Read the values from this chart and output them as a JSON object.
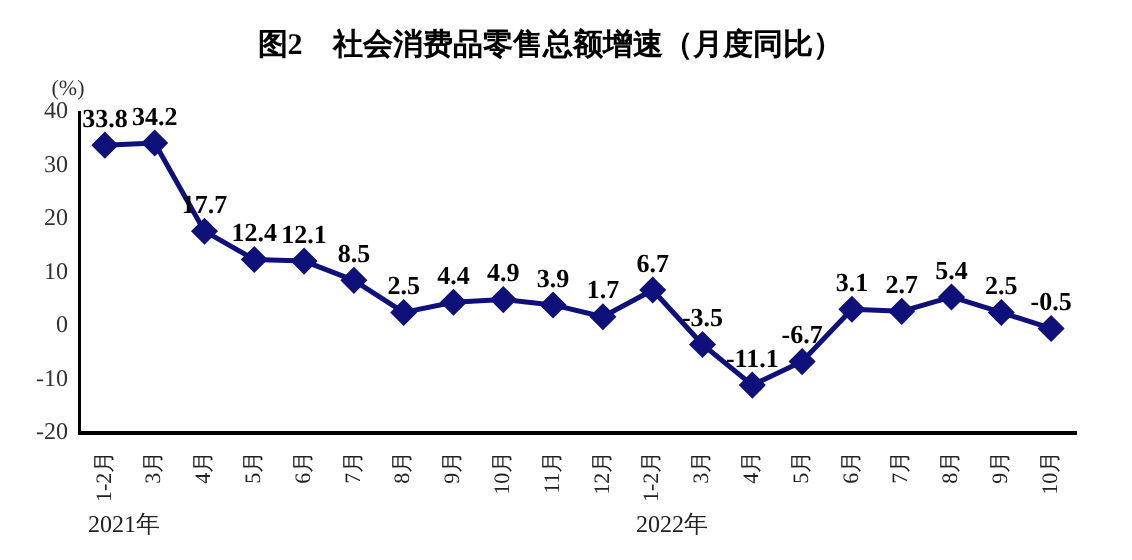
{
  "chart_data": {
    "type": "line",
    "title": "图2　社会消费品零售总额增速（月度同比）",
    "ylabel": "(%)",
    "categories": [
      "1-2月",
      "3月",
      "4月",
      "5月",
      "6月",
      "7月",
      "8月",
      "9月",
      "10月",
      "11月",
      "12月",
      "1-2月",
      "3月",
      "4月",
      "5月",
      "6月",
      "7月",
      "8月",
      "9月",
      "10月"
    ],
    "series": [
      {
        "color": "#10107a",
        "values": [
          33.8,
          34.2,
          17.7,
          12.4,
          12.1,
          8.5,
          2.5,
          4.4,
          4.9,
          3.9,
          1.7,
          6.7,
          -3.5,
          -11.1,
          -6.7,
          3.1,
          2.7,
          5.4,
          2.5,
          -0.5
        ]
      }
    ],
    "ylim": [
      -20,
      40
    ],
    "yticks": [
      -20,
      -10,
      0,
      10,
      20,
      30,
      40
    ],
    "grid": false,
    "legend": false,
    "marker": "diamond",
    "line_style": "solid",
    "data_labels": true,
    "annotations": [
      "2021年",
      "2022年"
    ]
  }
}
